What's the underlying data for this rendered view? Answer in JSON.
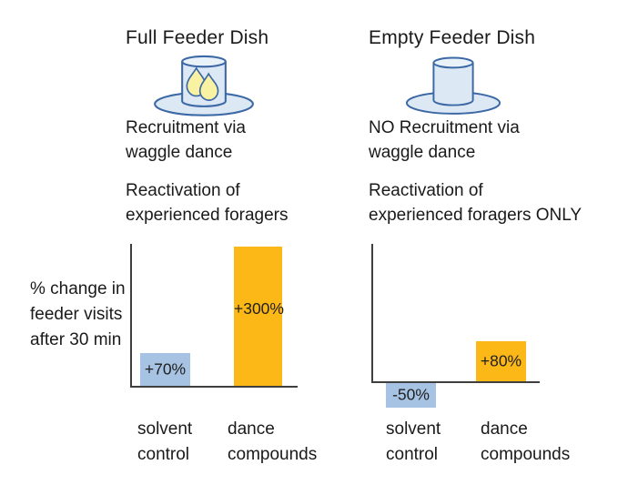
{
  "colors": {
    "bar_blue": "#A6C3E4",
    "bar_yellow": "#FCB817",
    "dish_fill": "#DCE9F5",
    "dish_outline": "#3C68A5",
    "drop_fill": "#F8F2A2",
    "axis": "#3F3F3F",
    "text": "#1A1A1A",
    "background": "#FFFFFF"
  },
  "panels": {
    "left": {
      "title": "Full Feeder Dish",
      "icon": "full-feeder-dish-icon",
      "recruitment": "Recruitment via\nwaggle dance",
      "reactivation": "Reactivation of\nexperienced foragers",
      "ylabel": "% change in\nfeeder visits\nafter 30 min",
      "bars": [
        {
          "category": "solvent\ncontrol",
          "value": 70,
          "value_label": "+70%",
          "color": "#A6C3E4"
        },
        {
          "category": "dance\ncompounds",
          "value": 300,
          "value_label": "+300%",
          "color": "#FCB817"
        }
      ]
    },
    "right": {
      "title": "Empty Feeder Dish",
      "icon": "empty-feeder-dish-icon",
      "recruitment": "NO Recruitment via\nwaggle dance",
      "reactivation": "Reactivation of\nexperienced foragers ONLY",
      "bars": [
        {
          "category": "solvent\ncontrol",
          "value": -50,
          "value_label": "-50%",
          "color": "#A6C3E4"
        },
        {
          "category": "dance\ncompounds",
          "value": 80,
          "value_label": "+80%",
          "color": "#FCB817"
        }
      ]
    }
  },
  "chart_data": [
    {
      "type": "bar",
      "panel_title": "Full Feeder Dish",
      "categories": [
        "solvent control",
        "dance compounds"
      ],
      "values": [
        70,
        300
      ],
      "data_labels": [
        "+70%",
        "+300%"
      ],
      "bar_colors": [
        "#A6C3E4",
        "#FCB817"
      ],
      "xlabel": "",
      "ylabel": "% change in feeder visits after 30 min",
      "ylim": [
        0,
        310
      ],
      "grid": false,
      "legend": false
    },
    {
      "type": "bar",
      "panel_title": "Empty Feeder Dish",
      "categories": [
        "solvent control",
        "dance compounds"
      ],
      "values": [
        -50,
        80
      ],
      "data_labels": [
        "-50%",
        "+80%"
      ],
      "bar_colors": [
        "#A6C3E4",
        "#FCB817"
      ],
      "xlabel": "",
      "ylabel": "",
      "ylim": [
        -60,
        310
      ],
      "grid": false,
      "legend": false
    }
  ]
}
